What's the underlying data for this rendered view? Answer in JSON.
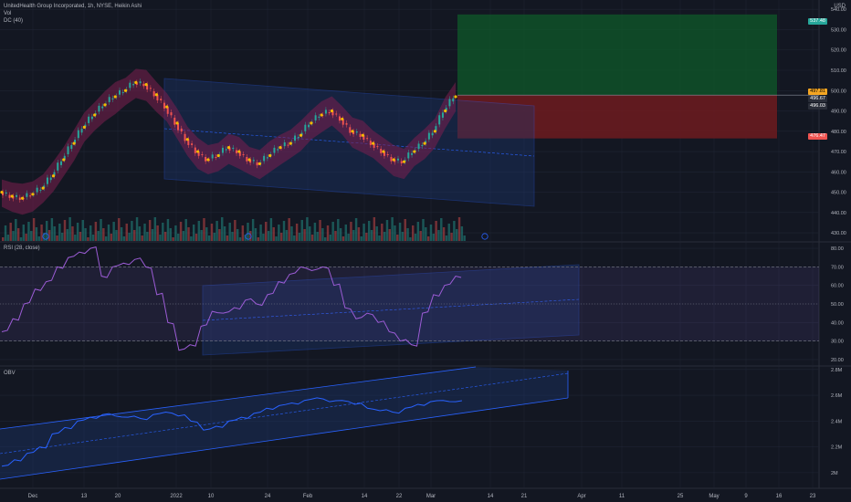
{
  "header": {
    "title": "UnitedHealth Group Incorporated, 1h, NYSE, Heikin Ashi",
    "currency": "USD"
  },
  "indicators": {
    "vol_label": "Vol",
    "dc_label": "DC (40)",
    "rsi_label": "RSI (28, close)",
    "obv_label": "OBV"
  },
  "colors": {
    "background": "#131722",
    "grid": "#1f2433",
    "up": "#26a69a",
    "down": "#ef5350",
    "channel": "#2962ff",
    "rsi_line": "#9c5cd6",
    "obv_line": "#2962ff",
    "dc_fill": "#7b1f4f",
    "dc_mid": "#f5b800",
    "target_zone": "#0f5a2a",
    "stop_zone": "#6e1b1f"
  },
  "chart_data": [
    {
      "type": "candlestick",
      "panel": "price",
      "xaxis_labels": [
        "Dec",
        "13",
        "20",
        "2022",
        "10",
        "24",
        "Feb",
        "14",
        "22",
        "Mar",
        "14",
        "21",
        "Apr",
        "11",
        "25",
        "May",
        "9",
        "16",
        "23"
      ],
      "y_ticks": [
        430,
        440,
        450,
        460,
        470,
        480,
        490,
        500,
        510,
        520,
        530,
        540
      ],
      "ylim": [
        426,
        541
      ],
      "series": [
        {
          "name": "Price",
          "values": [
            450,
            448,
            447,
            449,
            452,
            458,
            466,
            474,
            482,
            488,
            493,
            497,
            500,
            504,
            503,
            498,
            492,
            484,
            476,
            470,
            466,
            468,
            472,
            470,
            466,
            464,
            468,
            472,
            474,
            478,
            484,
            488,
            490,
            486,
            480,
            478,
            474,
            470,
            466,
            465,
            470,
            474,
            480,
            490,
            497
          ]
        }
      ],
      "price_tags": {
        "current": "497.81",
        "upper": "496.67",
        "lower": "496.03",
        "target": "537.48",
        "stop": "476.47"
      }
    },
    {
      "type": "line",
      "panel": "rsi",
      "y_ticks": [
        20,
        30,
        40,
        50,
        60,
        70,
        80
      ],
      "ylim": [
        17,
        83
      ],
      "series": [
        {
          "values": [
            35,
            42,
            50,
            58,
            62,
            70,
            75,
            78,
            80,
            65,
            70,
            72,
            74,
            70,
            55,
            40,
            25,
            28,
            38,
            46,
            45,
            48,
            52,
            50,
            55,
            62,
            66,
            70,
            68,
            70,
            60,
            48,
            42,
            45,
            40,
            35,
            30,
            28,
            45,
            55,
            60,
            65
          ]
        }
      ],
      "bands": [
        30,
        70
      ],
      "middle": 50
    },
    {
      "type": "line",
      "panel": "obv",
      "y_ticks": [
        "2M",
        "2.2M",
        "2.4M",
        "2.6M",
        "2.8M"
      ],
      "ylim": [
        1.9,
        2.82
      ],
      "series": [
        {
          "values": [
            2.05,
            2.1,
            2.15,
            2.2,
            2.3,
            2.35,
            2.4,
            2.43,
            2.45,
            2.44,
            2.43,
            2.42,
            2.45,
            2.47,
            2.44,
            2.4,
            2.33,
            2.36,
            2.4,
            2.43,
            2.46,
            2.5,
            2.52,
            2.54,
            2.56,
            2.58,
            2.55,
            2.56,
            2.53,
            2.5,
            2.48,
            2.47,
            2.5,
            2.53,
            2.55,
            2.56,
            2.55
          ]
        }
      ]
    }
  ]
}
